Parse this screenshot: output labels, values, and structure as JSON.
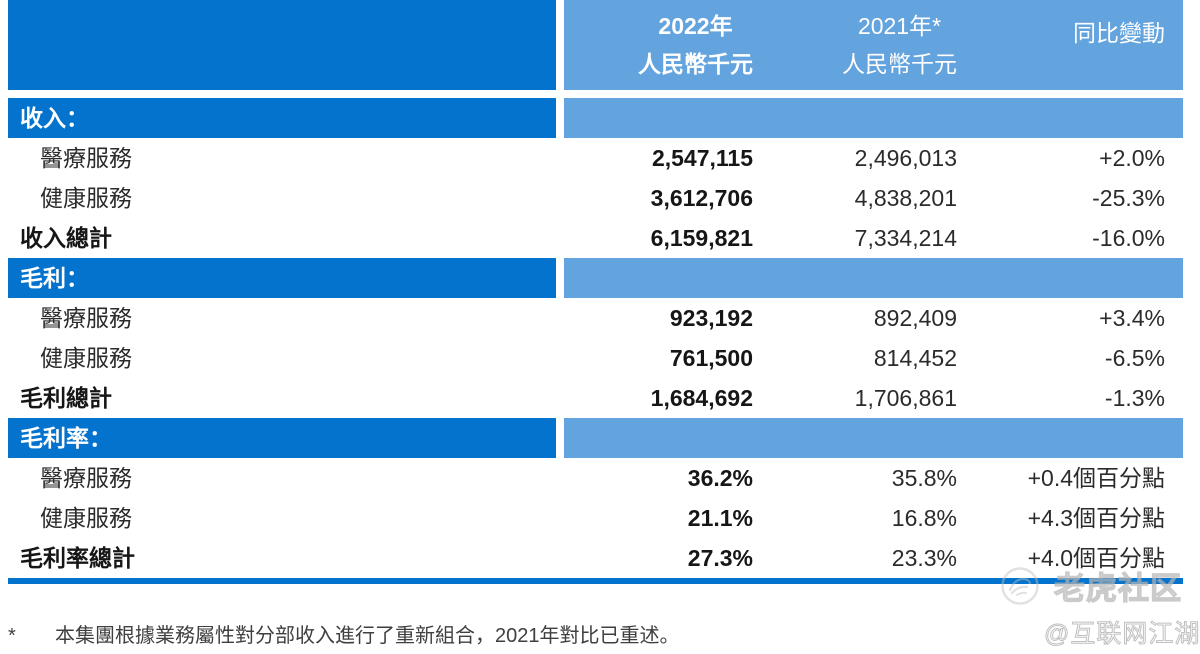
{
  "colors": {
    "dark_blue": "#0473cd",
    "light_blue": "#63a3de",
    "text_dark": "#161616",
    "text_gray": "#2b2b2b"
  },
  "table": {
    "header": {
      "col_2022": {
        "line1": "2022年",
        "line2": "人民幣千元"
      },
      "col_2021": {
        "line1": "2021年*",
        "line2": "人民幣千元"
      },
      "col_change": "同比變動"
    },
    "sections": [
      {
        "title": "收入：",
        "rows": [
          {
            "label": "醫療服務",
            "style": "item",
            "v2022": "2,547,115",
            "v2021": "2,496,013",
            "change": "+2.0%"
          },
          {
            "label": "健康服務",
            "style": "item",
            "v2022": "3,612,706",
            "v2021": "4,838,201",
            "change": "-25.3%"
          },
          {
            "label": "收入總計",
            "style": "total",
            "v2022": "6,159,821",
            "v2021": "7,334,214",
            "change": "-16.0%"
          }
        ]
      },
      {
        "title": "毛利：",
        "rows": [
          {
            "label": "醫療服務",
            "style": "item",
            "v2022": "923,192",
            "v2021": "892,409",
            "change": "+3.4%"
          },
          {
            "label": "健康服務",
            "style": "item",
            "v2022": "761,500",
            "v2021": "814,452",
            "change": "-6.5%"
          },
          {
            "label": "毛利總計",
            "style": "total",
            "v2022": "1,684,692",
            "v2021": "1,706,861",
            "change": "-1.3%"
          }
        ]
      },
      {
        "title": "毛利率：",
        "rows": [
          {
            "label": "醫療服務",
            "style": "item",
            "v2022": "36.2%",
            "v2021": "35.8%",
            "change": "+0.4個百分點"
          },
          {
            "label": "健康服務",
            "style": "item",
            "v2022": "21.1%",
            "v2021": "16.8%",
            "change": "+4.3個百分點"
          },
          {
            "label": "毛利率總計",
            "style": "total",
            "v2022": "27.3%",
            "v2021": "23.3%",
            "change": "+4.0個百分點"
          }
        ]
      }
    ]
  },
  "footnote": {
    "marker": "*",
    "text": "本集團根據業務屬性對分部收入進行了重新組合，2021年對比已重述。"
  },
  "watermark": {
    "brand": "老虎社区",
    "handle": "@互联网江湖"
  }
}
